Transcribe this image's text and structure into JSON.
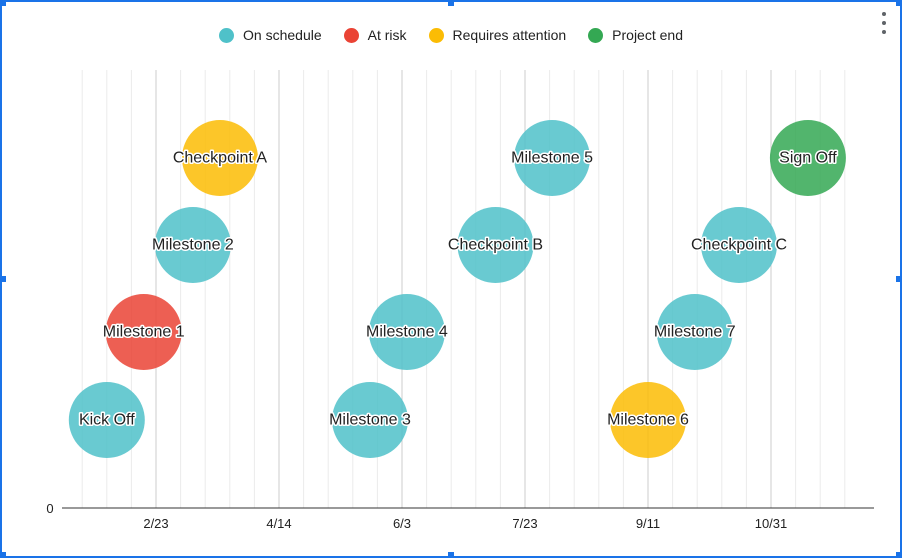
{
  "chart_data": {
    "type": "scatter",
    "grid": true,
    "legend_position": "top",
    "y_tick_labels": [
      "0"
    ],
    "x_tick_labels": [
      "2/23",
      "4/14",
      "6/3",
      "7/23",
      "9/11",
      "10/31"
    ],
    "legend": [
      {
        "key": "on_schedule",
        "label": "On schedule",
        "color": "#4fc1c9"
      },
      {
        "key": "at_risk",
        "label": "At risk",
        "color": "#ea4335"
      },
      {
        "key": "requires_attention",
        "label": "Requires attention",
        "color": "#fbbc04"
      },
      {
        "key": "project_end",
        "label": "Project end",
        "color": "#34a853"
      }
    ],
    "points": [
      {
        "label": "Kick Off",
        "date": "2/3",
        "level": 1,
        "status": "on_schedule"
      },
      {
        "label": "Milestone 1",
        "date": "2/18",
        "level": 2,
        "status": "at_risk"
      },
      {
        "label": "Milestone 2",
        "date": "3/10",
        "level": 3,
        "status": "on_schedule"
      },
      {
        "label": "Checkpoint A",
        "date": "3/21",
        "level": 4,
        "status": "requires_attention"
      },
      {
        "label": "Milestone 3",
        "date": "5/21",
        "level": 1,
        "status": "on_schedule"
      },
      {
        "label": "Milestone 4",
        "date": "6/5",
        "level": 2,
        "status": "on_schedule"
      },
      {
        "label": "Checkpoint B",
        "date": "7/11",
        "level": 3,
        "status": "on_schedule"
      },
      {
        "label": "Milestone 5",
        "date": "8/3",
        "level": 4,
        "status": "on_schedule"
      },
      {
        "label": "Milestone 6",
        "date": "9/11",
        "level": 1,
        "status": "requires_attention"
      },
      {
        "label": "Milestone 7",
        "date": "9/30",
        "level": 2,
        "status": "on_schedule"
      },
      {
        "label": "Checkpoint C",
        "date": "10/18",
        "level": 3,
        "status": "on_schedule"
      },
      {
        "label": "Sign Off",
        "date": "11/15",
        "level": 4,
        "status": "project_end"
      }
    ]
  }
}
